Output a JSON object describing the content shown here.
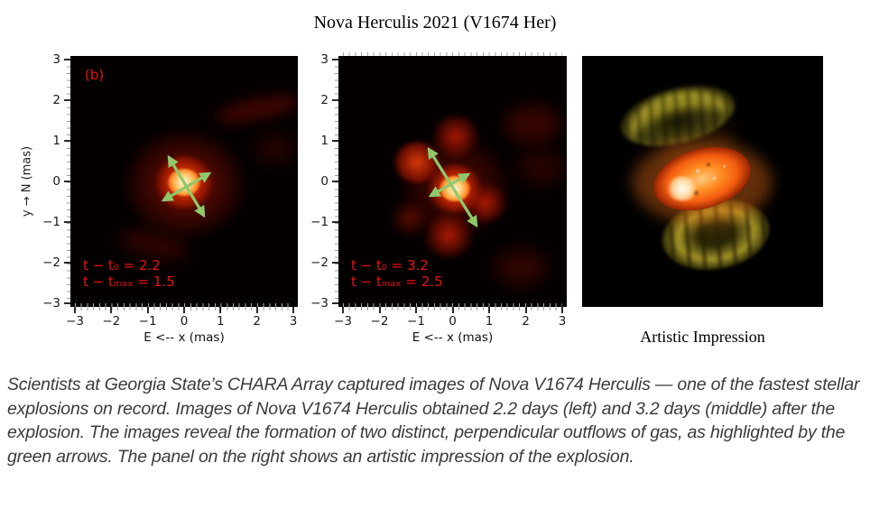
{
  "title": "Nova Herculis 2021 (V1674 Her)",
  "axes": {
    "x_label": "E <-- x (mas)",
    "y_label": "y → N (mas)",
    "x_ticks": [
      "−3",
      "−2",
      "−1",
      "0",
      "1",
      "2",
      "3"
    ],
    "y_ticks": [
      "3",
      "2",
      "1",
      "0",
      "−1",
      "−2",
      "−3"
    ]
  },
  "panels": {
    "left": {
      "label": "(b)",
      "annotation_line1": "t − t₀ = 2.2",
      "annotation_line2": "t − tₘₐₓ = 1.5"
    },
    "middle": {
      "annotation_line1": "t − t₀ = 3.2",
      "annotation_line2": "t − tₘₐₓ = 2.5"
    },
    "right": {
      "caption": "Artistic Impression"
    }
  },
  "caption": "Scientists at Georgia State’s CHARA Array captured images of Nova V1674 Herculis — one of the fastest stellar explosions on record. Images of Nova V1674 Herculis obtained 2.2 days (left) and 3.2 days (middle) after the explosion. The images reveal the formation of two distinct, perpendicular outflows of gas, as highlighted by the green arrows. The panel on the right shows an artistic impression of the explosion.",
  "colors": {
    "annotation_red": "#ea1010",
    "arrow_green": "#8fc96b",
    "caption_text": "#3b3b3b",
    "panel_background": "#050000"
  },
  "chart_data": [
    {
      "type": "heatmap",
      "panel": "left",
      "label": "(b)",
      "xlabel": "E <-- x (mas)",
      "ylabel": "y → N (mas)",
      "xlim": [
        -3,
        3
      ],
      "ylim": [
        -3,
        3
      ],
      "x_ticks": [
        -3,
        -2,
        -1,
        0,
        1,
        2,
        3
      ],
      "y_ticks": [
        3,
        2,
        1,
        0,
        -1,
        -2,
        -3
      ],
      "colormap": "hot (black-red-orange-white)",
      "annotations": [
        "t − t₀ = 2.2",
        "t − tₘₐₓ = 1.5"
      ],
      "central_source": {
        "x": 0.05,
        "y": 0.0,
        "peak": "white-orange core with red halo, radius ~1 mas"
      },
      "arrows": [
        {
          "x1": -0.42,
          "y1": 0.63,
          "x2": 0.55,
          "y2": -0.8,
          "double_headed": true
        },
        {
          "x1": -0.57,
          "y1": -0.43,
          "x2": 0.69,
          "y2": 0.23,
          "double_headed": true
        }
      ],
      "arrow_color": "#8fc96b"
    },
    {
      "type": "heatmap",
      "panel": "middle",
      "xlabel": "E <-- x (mas)",
      "ylabel": "y → N (mas)",
      "xlim": [
        -3,
        3
      ],
      "ylim": [
        -3,
        3
      ],
      "x_ticks": [
        -3,
        -2,
        -1,
        0,
        1,
        2,
        3
      ],
      "y_ticks": [
        3,
        2,
        1,
        0,
        -1,
        -2,
        -3
      ],
      "colormap": "hot (black-red-orange-white)",
      "annotations": [
        "t − t₀ = 3.2",
        "t − tₘₐₓ = 2.5"
      ],
      "central_source": {
        "x": -0.1,
        "y": 0.15,
        "peak": "white-orange core"
      },
      "secondary_clumps": [
        {
          "x": -0.1,
          "y": 1.3
        },
        {
          "x": -1.0,
          "y": 0.55
        },
        {
          "x": 0.85,
          "y": -0.5
        },
        {
          "x": -0.2,
          "y": -1.3
        },
        {
          "x": -1.2,
          "y": -0.55
        }
      ],
      "arrows": [
        {
          "x1": -0.66,
          "y1": 0.82,
          "x2": 0.66,
          "y2": -1.04,
          "double_headed": true
        },
        {
          "x1": -0.61,
          "y1": -0.32,
          "x2": 0.43,
          "y2": 0.21,
          "double_headed": true
        }
      ],
      "arrow_color": "#8fc96b"
    },
    {
      "type": "image",
      "panel": "right",
      "caption": "Artistic Impression",
      "description": "Black background; bright orange-white elongated explosion core tilted ~-16°, with two olive-yellow textured outflow lobes above-left and below-right."
    }
  ]
}
